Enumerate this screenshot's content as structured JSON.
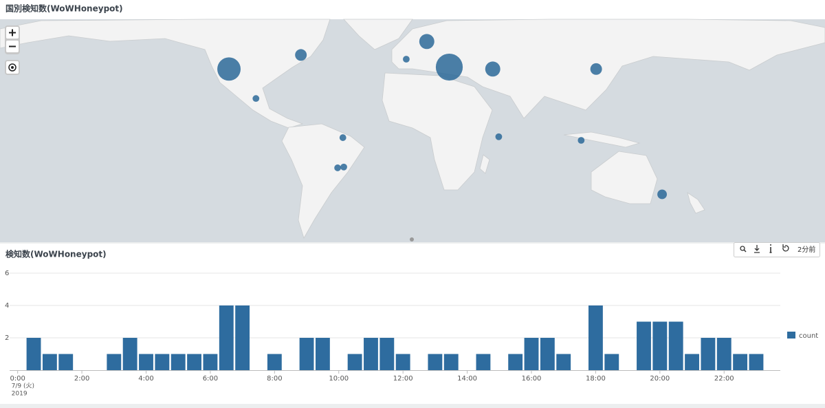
{
  "toolbar": {
    "last_updated": "2分前"
  },
  "chart_data": [
    {
      "type": "bubble-map",
      "title": "国別検知数(WoWHoneypot)",
      "color": "#2b6898",
      "lon": [
        -122,
        -74,
        -104,
        -3.7,
        10,
        25,
        54,
        123,
        -46,
        -49.5,
        -45.4,
        58,
        113,
        167
      ],
      "lat": [
        38,
        45,
        21,
        43,
        51,
        39,
        38,
        38,
        -4.6,
        -24,
        -23.5,
        -4,
        -6.4,
        -39
      ],
      "values": [
        12,
        3,
        1,
        1,
        5,
        16,
        5,
        3,
        1,
        1,
        1,
        1,
        1,
        2
      ]
    },
    {
      "type": "bar",
      "title": "検知数(WoWHoneypot)",
      "x": [
        0.5,
        1,
        1.5,
        3,
        3.5,
        4,
        4.5,
        5,
        5.5,
        6,
        6.5,
        7,
        8,
        9,
        9.5,
        10.5,
        11,
        11.5,
        12,
        13,
        13.5,
        14.5,
        15.5,
        16,
        16.5,
        17,
        18,
        18.5,
        19.5,
        20,
        20.5,
        21,
        21.5,
        22,
        22.5,
        23
      ],
      "series": [
        {
          "name": "count",
          "color": "#2e6c9f",
          "values": [
            2,
            1,
            1,
            1,
            2,
            1,
            1,
            1,
            1,
            1,
            4,
            4,
            1,
            2,
            2,
            1,
            2,
            2,
            1,
            1,
            1,
            1,
            1,
            2,
            2,
            1,
            4,
            1,
            3,
            3,
            3,
            1,
            2,
            2,
            1,
            1
          ]
        }
      ],
      "xlim": [
        -0.25,
        23.75
      ],
      "xticks": [
        {
          "value": 0,
          "label": "0:00"
        },
        {
          "value": 2,
          "label": "2:00"
        },
        {
          "value": 4,
          "label": "4:00"
        },
        {
          "value": 6,
          "label": "6:00"
        },
        {
          "value": 8,
          "label": "8:00"
        },
        {
          "value": 10,
          "label": "10:00"
        },
        {
          "value": 12,
          "label": "12:00"
        },
        {
          "value": 14,
          "label": "14:00"
        },
        {
          "value": 16,
          "label": "16:00"
        },
        {
          "value": 18,
          "label": "18:00"
        },
        {
          "value": 20,
          "label": "20:00"
        },
        {
          "value": 22,
          "label": "22:00"
        }
      ],
      "x_date": "7/9 (火)",
      "x_year": "2019",
      "ylim": [
        0,
        6
      ],
      "yticks": [
        2,
        4,
        6
      ],
      "grid": true,
      "legend": "right"
    }
  ]
}
